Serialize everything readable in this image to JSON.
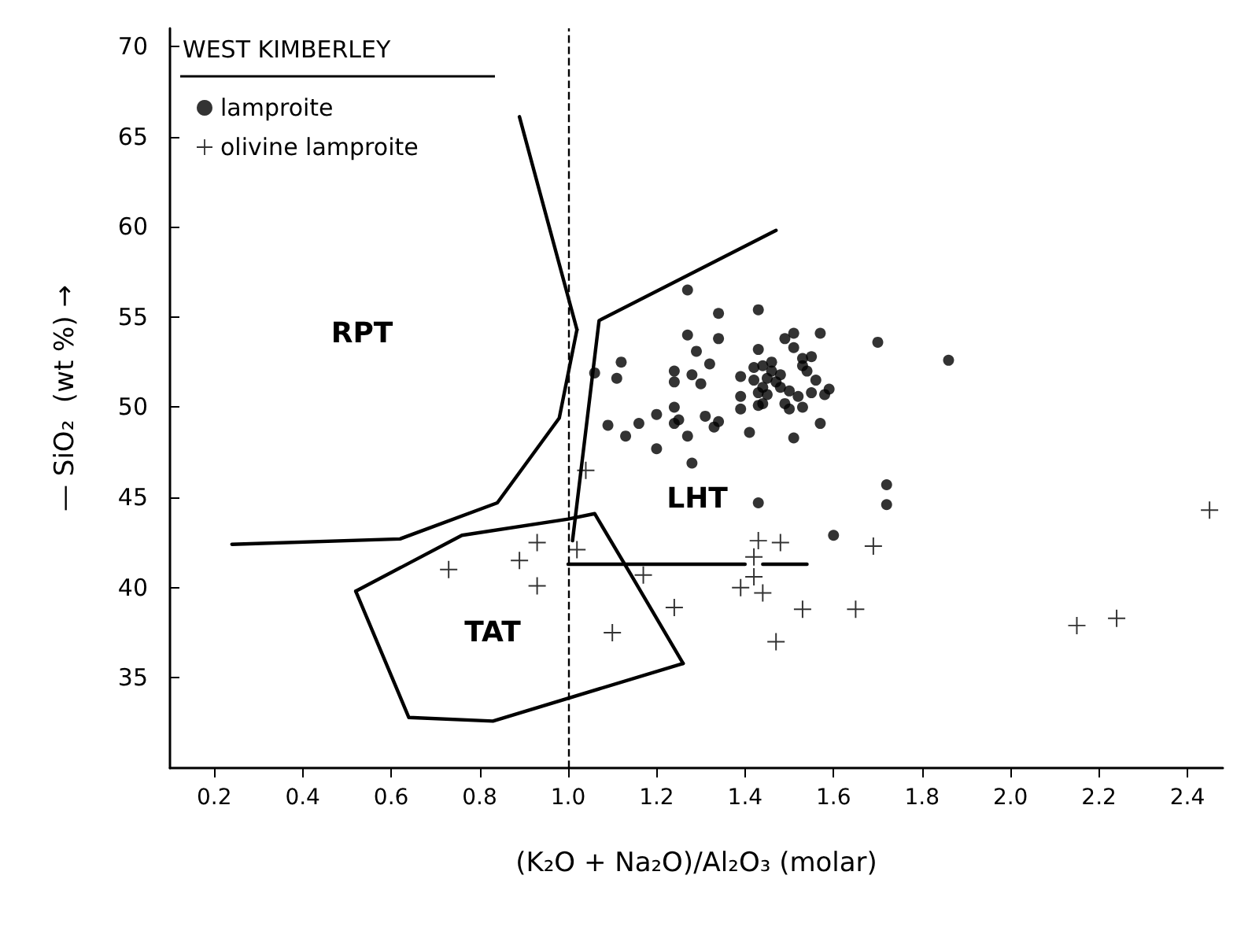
{
  "chart_data": {
    "type": "scatter",
    "legend_title": "WEST KIMBERLEY",
    "xlabel": "(K₂O + Na₂O)/Al₂O₃ (molar)",
    "ylabel": "— SiO₂  (wt %) →",
    "xlim": [
      0.1,
      2.48
    ],
    "ylim": [
      30,
      71
    ],
    "xticks": [
      {
        "value": 0.2,
        "label": "0.2"
      },
      {
        "value": 0.4,
        "label": "0.4"
      },
      {
        "value": 0.6,
        "label": "0.6"
      },
      {
        "value": 0.8,
        "label": "0.8"
      },
      {
        "value": 1.0,
        "label": "1.0"
      },
      {
        "value": 1.2,
        "label": "1.2"
      },
      {
        "value": 1.4,
        "label": "1.4"
      },
      {
        "value": 1.6,
        "label": "1.6"
      },
      {
        "value": 1.8,
        "label": "1.8"
      },
      {
        "value": 2.0,
        "label": "2.0"
      },
      {
        "value": 2.2,
        "label": "2.2"
      },
      {
        "value": 2.4,
        "label": "2.4"
      }
    ],
    "yticks": [
      35,
      40,
      45,
      50,
      55,
      60,
      65,
      70
    ],
    "grid": false,
    "legend": "top left",
    "series": [
      {
        "name": "lamproite",
        "marker": "circle",
        "color": "#000000",
        "x": [
          1.27,
          1.34,
          1.43,
          1.27,
          1.34,
          1.51,
          1.57,
          1.49,
          1.51,
          1.7,
          1.29,
          1.43,
          1.12,
          1.06,
          1.11,
          1.24,
          1.24,
          1.28,
          1.3,
          1.32,
          1.42,
          1.44,
          1.46,
          1.46,
          1.42,
          1.45,
          1.47,
          1.48,
          1.53,
          1.53,
          1.55,
          1.54,
          1.56,
          1.39,
          1.39,
          1.43,
          1.44,
          1.45,
          1.48,
          1.5,
          1.52,
          1.55,
          1.58,
          1.59,
          1.43,
          1.44,
          1.49,
          1.5,
          1.53,
          1.39,
          1.09,
          1.13,
          1.16,
          1.2,
          1.24,
          1.24,
          1.25,
          1.27,
          1.31,
          1.33,
          1.34,
          1.2,
          1.41,
          1.51,
          1.57,
          1.28,
          1.72,
          1.72,
          1.43,
          1.86,
          1.6
        ],
        "values": [
          56.5,
          55.2,
          55.4,
          54.0,
          53.8,
          54.1,
          54.1,
          53.8,
          53.3,
          53.6,
          53.1,
          53.2,
          52.5,
          51.9,
          51.6,
          52.0,
          51.4,
          51.8,
          51.3,
          52.4,
          52.2,
          52.3,
          52.5,
          52.0,
          51.5,
          51.6,
          51.4,
          51.8,
          52.3,
          52.7,
          52.8,
          52.0,
          51.5,
          51.7,
          50.6,
          50.8,
          51.1,
          50.7,
          51.1,
          50.9,
          50.6,
          50.8,
          50.7,
          51.0,
          50.1,
          50.2,
          50.2,
          49.9,
          50.0,
          49.9,
          49.0,
          48.4,
          49.1,
          49.6,
          50.0,
          49.1,
          49.3,
          48.4,
          49.5,
          48.9,
          49.2,
          47.7,
          48.6,
          48.3,
          49.1,
          46.9,
          45.7,
          44.6,
          44.7,
          52.6,
          42.9
        ]
      },
      {
        "name": "olivine lamproite",
        "marker": "cross",
        "color": "#000000",
        "x": [
          0.93,
          0.89,
          0.73,
          0.93,
          1.02,
          1.04,
          1.17,
          1.24,
          1.1,
          1.43,
          1.48,
          1.42,
          1.42,
          1.39,
          1.44,
          1.47,
          1.69,
          1.53,
          1.65,
          2.15,
          2.24,
          2.45
        ],
        "values": [
          42.5,
          41.5,
          41.0,
          40.1,
          42.1,
          46.5,
          40.7,
          38.9,
          37.5,
          42.6,
          42.5,
          41.7,
          40.6,
          40.0,
          39.7,
          37.0,
          42.3,
          38.8,
          38.8,
          37.9,
          38.3,
          44.3
        ]
      },
      {
        "type": "line",
        "marker": "none",
        "color": "#000000",
        "x": [
          0.24,
          0.62,
          0.84,
          0.98,
          1.02
        ],
        "values": [
          42.4,
          42.7,
          44.7,
          49.4,
          54.3
        ]
      },
      {
        "type": "line",
        "marker": "none",
        "color": "#000000",
        "x": [
          0.89,
          1.02
        ],
        "values": [
          66.1,
          54.3
        ]
      },
      {
        "type": "line",
        "marker": "none",
        "color": "#000000",
        "x": [
          1.01,
          1.07,
          1.47
        ],
        "values": [
          42.6,
          54.8,
          59.8
        ]
      },
      {
        "type": "line",
        "marker": "none",
        "color": "#000000",
        "x": [
          0.52,
          0.64,
          0.83,
          1.26
        ],
        "values": [
          39.8,
          32.8,
          32.6,
          35.8
        ]
      },
      {
        "type": "line",
        "marker": "none",
        "color": "#000000",
        "x": [
          0.52,
          0.76,
          1.0,
          1.06,
          1.14,
          1.26
        ],
        "values": [
          39.8,
          42.9,
          43.8,
          44.1,
          40.8,
          35.8
        ]
      },
      {
        "type": "line",
        "marker": "none",
        "color": "#000000",
        "x": [
          1.0,
          1.4
        ],
        "values": [
          41.3,
          41.3
        ]
      },
      {
        "type": "line",
        "marker": "none",
        "color": "#000000",
        "x": [
          1.44,
          1.54
        ],
        "values": [
          41.3,
          41.3
        ]
      }
    ],
    "ref_lines": [
      {
        "axis": "x",
        "value": 1.0,
        "line_style": "dashed",
        "color": "#000000"
      }
    ],
    "annotations": [
      "RPT",
      "LHT",
      "TAT"
    ]
  }
}
